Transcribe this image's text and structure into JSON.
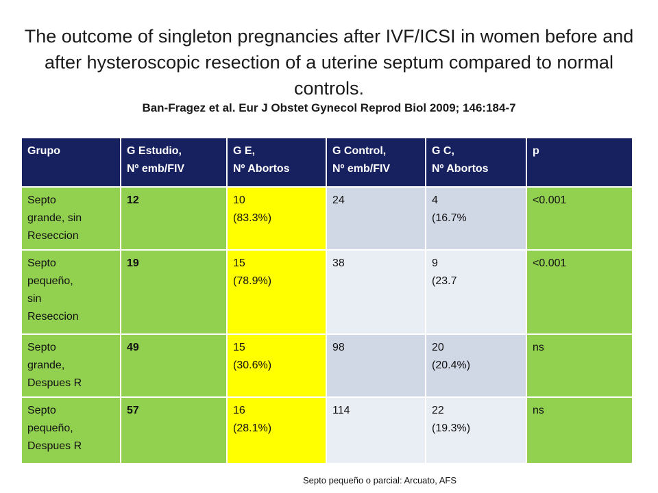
{
  "title": "The outcome of singleton pregnancies after IVF/ICSI in women before and after hysteroscopic resection of a uterine septum compared to normal controls.",
  "citation": "Ban-Fragez et al. Eur J Obstet Gynecol Reprod Biol 2009; 146:184-7",
  "table": {
    "headers": [
      "Grupo",
      "G Estudio,\nNº emb/FIV",
      "G E,\nNº Abortos",
      "G Control,\nNº  emb/FIV",
      "G C,\nNº Abortos",
      "p"
    ],
    "rows": [
      [
        "Septo\ngrande, sin\nReseccion",
        "12",
        "10\n(83.3%)",
        "24",
        "4\n(16.7%",
        "<0.001"
      ],
      [
        "Septo\npequeño,\nsin\nReseccion",
        "19",
        "15\n(78.9%)",
        "38",
        "9\n(23.7",
        "<0.001"
      ],
      [
        "Septo\ngrande,\nDespues R",
        "49",
        "15\n(30.6%)",
        "98",
        "20\n(20.4%)",
        "ns"
      ],
      [
        "Septo\npequeño,\nDespues R",
        "57",
        "16\n(28.1%)",
        "114",
        "22\n(19.3%)",
        "ns"
      ]
    ]
  },
  "footnote": "Septo pequeño o parcial: Arcuato, AFS",
  "colors": {
    "header_bg": "#17215f",
    "green": "#92d050",
    "yellow": "#ffff00",
    "grey_blue": "#d0d7e5",
    "grey_blue_light": "#e9edf4"
  }
}
